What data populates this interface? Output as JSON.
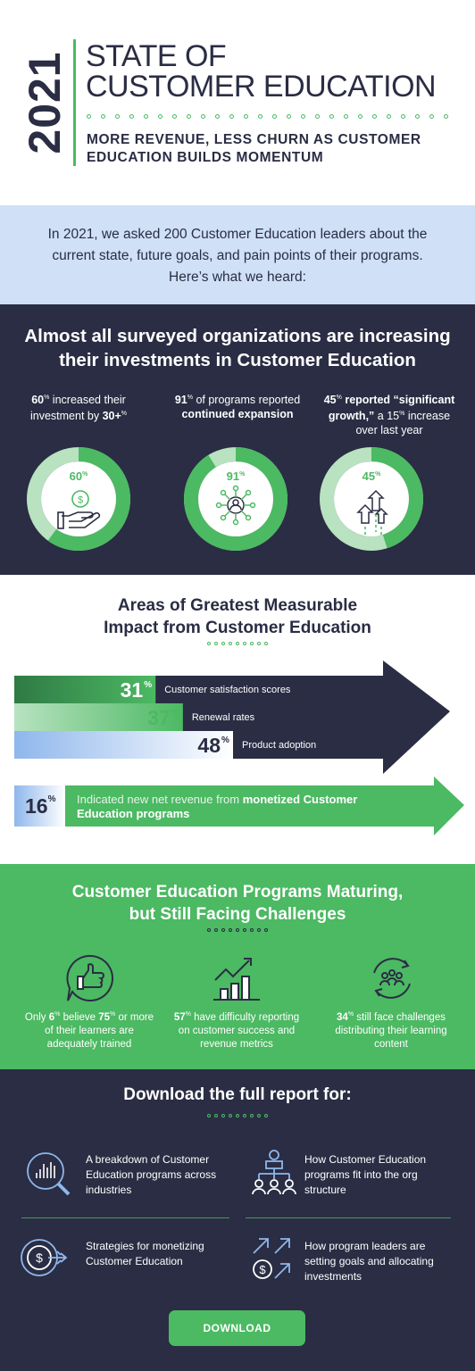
{
  "header": {
    "year": "2021",
    "title_line1": "STATE OF",
    "title_line2": "CUSTOMER EDUCATION",
    "subtitle_line1": "MORE REVENUE, LESS CHURN AS CUSTOMER",
    "subtitle_line2": "EDUCATION BUILDS MOMENTUM"
  },
  "intro": {
    "text": "In 2021, we asked 200 Customer Education leaders about the current state, future goals, and pain points of their programs. Here’s what we heard:"
  },
  "investments": {
    "heading": "Almost all surveyed organizations are increasing their investments in Customer Education",
    "stats": [
      {
        "pct": "60",
        "sup": "%",
        "text_a": " increased their investment by ",
        "bold_b": "30+",
        "sup_b": "%",
        "ring_value": 60,
        "label": "60",
        "label_sup": "%",
        "icon": "money-hand-icon"
      },
      {
        "pct": "91",
        "sup": "%",
        "text_a": " of programs reported ",
        "bold_b": "continued expansion",
        "ring_value": 91,
        "label": "91",
        "label_sup": "%",
        "icon": "network-person-icon"
      },
      {
        "pct": "45",
        "sup": "%",
        "bold_a": " reported “significant growth,”",
        "text_b": " a 15",
        "sup_b": "%",
        "text_c": " increase over last year",
        "ring_value": 45,
        "label": "45",
        "label_sup": "%",
        "icon": "growth-arrows-icon"
      }
    ]
  },
  "areas": {
    "heading_line1": "Areas of Greatest Measurable",
    "heading_line2": "Impact from Customer Education",
    "bars": [
      {
        "pct": "31",
        "sup": "%",
        "label": "Customer satisfaction scores",
        "value": 31
      },
      {
        "pct": "37",
        "sup": "%",
        "label": "Renewal rates",
        "value": 37
      },
      {
        "pct": "48",
        "sup": "%",
        "label": "Product adoption",
        "value": 48
      }
    ],
    "revenue": {
      "pct": "16",
      "sup": "%",
      "text": "Indicated new net revenue from ",
      "bold": "monetized Customer Education programs"
    }
  },
  "challenges": {
    "heading_line1": "Customer Education Programs Maturing,",
    "heading_line2": "but Still Facing Challenges",
    "items": [
      {
        "icon": "thumbs-up-icon",
        "parts": [
          "Only ",
          "6",
          "%",
          " believe ",
          "75",
          "%",
          " or more of their learners are adequately trained"
        ]
      },
      {
        "icon": "bar-chart-icon",
        "bold": "57",
        "sup": "%",
        "text": " have difficulty reporting on customer success and revenue metrics"
      },
      {
        "icon": "people-refresh-icon",
        "bold": "34",
        "sup": "%",
        "text": " still face challenges distributing their learning content"
      }
    ]
  },
  "download": {
    "heading": "Download the full report for:",
    "items": [
      {
        "icon": "magnify-chart-icon",
        "text": "A breakdown of Customer Education programs across industries"
      },
      {
        "icon": "org-structure-icon",
        "text": "How Customer Education programs fit into the org structure"
      },
      {
        "icon": "money-target-icon",
        "text": "Strategies for monetizing Customer Education"
      },
      {
        "icon": "arrows-dollar-icon",
        "text": "How program leaders are setting goals and allocating investments"
      }
    ],
    "button_label": "DOWNLOAD"
  },
  "colors": {
    "navy": "#2a2d43",
    "green": "#4cb963",
    "light_green": "#b8e2c0",
    "light_blue": "#cfe0f7"
  }
}
